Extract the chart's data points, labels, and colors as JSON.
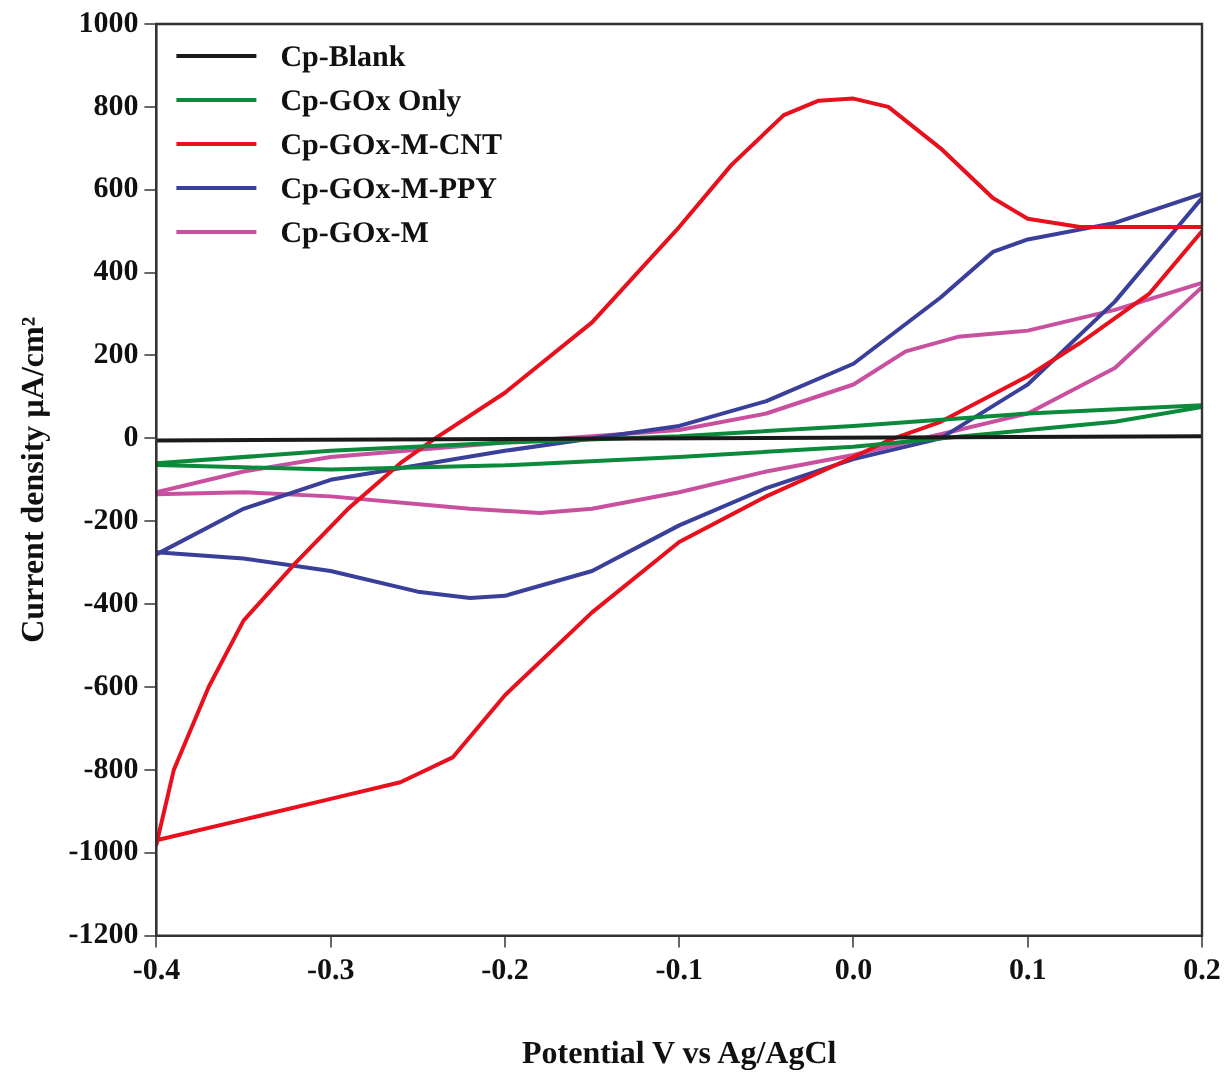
{
  "chart_data": {
    "type": "line",
    "xlabel": "Potential V vs Ag/AgCl",
    "ylabel": "Current density µA/cm²",
    "xlim": [
      -0.4,
      0.2
    ],
    "xticks": [
      -0.4,
      -0.3,
      -0.2,
      -0.1,
      {
        "value": 0,
        "label": "0.0"
      },
      0.1,
      0.2
    ],
    "ylim": [
      -1200,
      1000
    ],
    "yticks": [
      -1200,
      -1000,
      -800,
      -600,
      -400,
      -200,
      0,
      200,
      400,
      600,
      800,
      1000
    ],
    "grid": false,
    "legend": "top left",
    "marker": "none",
    "line_style": "solid",
    "series": [
      {
        "name": "Cp-Blank",
        "color": "#1a1a1a",
        "x": [
          -0.4,
          0.2
        ],
        "values": [
          -5,
          5
        ]
      },
      {
        "name": "Cp-GOx Only",
        "color": "#0a8a3a",
        "x": [
          -0.4,
          -0.3,
          -0.2,
          -0.1,
          0,
          0.1,
          0.2
        ],
        "values": [
          -60,
          -30,
          -10,
          5,
          30,
          60,
          80
        ]
      },
      {
        "color": "#0a8a3a",
        "x": [
          0.2,
          0.15,
          0.1,
          0,
          -0.1,
          -0.2,
          -0.3,
          -0.35,
          -0.4
        ],
        "values": [
          76,
          40,
          20,
          -20,
          -45,
          -65,
          -75,
          -70,
          -64
        ]
      },
      {
        "name": "Cp-GOx-M-CNT",
        "color": "#e8101c",
        "x": [
          -0.4,
          -0.39,
          -0.37,
          -0.35,
          -0.32,
          -0.29,
          -0.26,
          -0.24,
          -0.2,
          -0.15,
          -0.1,
          -0.07,
          -0.04,
          -0.02,
          0,
          0.02,
          0.05,
          0.08,
          0.1,
          0.13,
          0.2
        ],
        "values": [
          -980,
          -800,
          -600,
          -440,
          -300,
          -170,
          -60,
          0,
          110,
          280,
          510,
          660,
          780,
          815,
          820,
          800,
          700,
          580,
          530,
          510,
          510
        ]
      },
      {
        "color": "#e8101c",
        "x": [
          0.2,
          0.17,
          0.13,
          0.1,
          0.05,
          0.02,
          0,
          -0.05,
          -0.1,
          -0.15,
          -0.2,
          -0.23,
          -0.26,
          -0.3,
          -0.35,
          -0.4
        ],
        "values": [
          500,
          350,
          230,
          150,
          40,
          -5,
          -45,
          -140,
          -250,
          -420,
          -620,
          -770,
          -830,
          -870,
          -920,
          -970
        ]
      },
      {
        "name": "Cp-GOx-M-PPY",
        "color": "#3a3f9a",
        "x": [
          -0.4,
          -0.35,
          -0.3,
          -0.2,
          -0.1,
          -0.05,
          0,
          0.05,
          0.08,
          0.1,
          0.15,
          0.2
        ],
        "values": [
          -280,
          -170,
          -100,
          -30,
          30,
          90,
          180,
          340,
          450,
          480,
          520,
          590
        ]
      },
      {
        "color": "#3a3f9a",
        "x": [
          0.2,
          0.15,
          0.1,
          0.05,
          0,
          -0.05,
          -0.1,
          -0.15,
          -0.2,
          -0.22,
          -0.25,
          -0.3,
          -0.35,
          -0.4
        ],
        "values": [
          580,
          330,
          130,
          0,
          -50,
          -120,
          -210,
          -320,
          -380,
          -385,
          -370,
          -320,
          -290,
          -275
        ]
      },
      {
        "name": "Cp-GOx-M",
        "color": "#c8509e",
        "x": [
          -0.4,
          -0.35,
          -0.3,
          -0.2,
          -0.1,
          -0.05,
          0,
          0.03,
          0.06,
          0.1,
          0.15,
          0.2
        ],
        "values": [
          -130,
          -80,
          -45,
          -10,
          20,
          60,
          130,
          210,
          245,
          260,
          310,
          375
        ]
      },
      {
        "color": "#c8509e",
        "x": [
          0.2,
          0.15,
          0.1,
          0.05,
          0,
          -0.05,
          -0.1,
          -0.15,
          -0.18,
          -0.22,
          -0.3,
          -0.35,
          -0.4
        ],
        "values": [
          365,
          170,
          60,
          10,
          -40,
          -80,
          -130,
          -170,
          -180,
          -170,
          -140,
          -130,
          -135
        ]
      }
    ]
  }
}
